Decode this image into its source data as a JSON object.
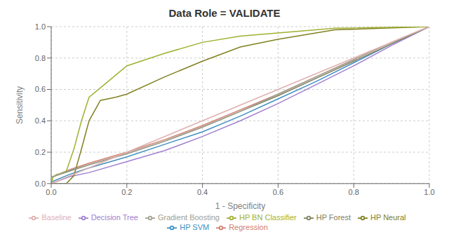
{
  "chart_data": {
    "type": "line",
    "title": "Data Role = VALIDATE",
    "xlabel": "1 - Specificity",
    "ylabel": "Sensitivity",
    "xlim": [
      0.0,
      1.0
    ],
    "ylim": [
      0.0,
      1.0
    ],
    "xticks": [
      {
        "value": 0.0,
        "label": "0.0"
      },
      0.2,
      0.4,
      0.6,
      0.8,
      {
        "value": 1.0,
        "label": "1.0"
      }
    ],
    "yticks": [
      {
        "value": 0.0,
        "label": "0.0"
      },
      0.2,
      0.4,
      0.6,
      0.8,
      {
        "value": 1.0,
        "label": "1.0"
      }
    ],
    "grid": true,
    "legend": "bottom",
    "series": [
      {
        "name": "Decision Tree",
        "color": "#a080d0",
        "x": [
          0.0,
          0.05,
          0.1,
          0.2,
          0.3,
          0.4,
          0.5,
          0.6,
          0.7,
          0.8,
          0.9,
          1.0
        ],
        "values": [
          0.0,
          0.045,
          0.07,
          0.14,
          0.21,
          0.3,
          0.4,
          0.51,
          0.63,
          0.75,
          0.88,
          1.0
        ]
      },
      {
        "name": "Regression",
        "color": "#d08070",
        "x": [
          0.0,
          0.05,
          0.1,
          0.2,
          0.3,
          0.4,
          0.5,
          0.6,
          0.7,
          0.8,
          0.9,
          1.0
        ],
        "values": [
          0.04,
          0.09,
          0.13,
          0.2,
          0.28,
          0.37,
          0.47,
          0.57,
          0.68,
          0.79,
          0.9,
          1.0
        ]
      },
      {
        "name": "HP SVM",
        "color": "#4090c0",
        "x": [
          0.0,
          0.05,
          0.1,
          0.2,
          0.3,
          0.4,
          0.5,
          0.6,
          0.7,
          0.8,
          0.9,
          1.0
        ],
        "values": [
          0.01,
          0.06,
          0.1,
          0.17,
          0.25,
          0.33,
          0.43,
          0.54,
          0.65,
          0.77,
          0.89,
          1.0
        ]
      },
      {
        "name": "HP Neural",
        "color": "#808020",
        "x": [
          0.0,
          0.005,
          0.01,
          0.02,
          0.04,
          0.06,
          0.08,
          0.1,
          0.13,
          0.17,
          0.2,
          0.3,
          0.4,
          0.5,
          0.6,
          0.7,
          0.75,
          1.0
        ],
        "values": [
          0.0,
          0.0,
          0.0,
          0.0,
          0.0,
          0.05,
          0.22,
          0.4,
          0.53,
          0.55,
          0.57,
          0.68,
          0.78,
          0.87,
          0.92,
          0.96,
          0.98,
          1.0
        ]
      },
      {
        "name": "HP Forest",
        "color": "#808060",
        "x": [
          0.0,
          0.05,
          0.1,
          0.2,
          0.3,
          0.4,
          0.5,
          0.6,
          0.7,
          0.8,
          0.9,
          1.0
        ],
        "values": [
          0.04,
          0.08,
          0.12,
          0.19,
          0.27,
          0.36,
          0.46,
          0.56,
          0.67,
          0.78,
          0.89,
          1.0
        ]
      },
      {
        "name": "HP BN Classifier",
        "color": "#a0b030",
        "x": [
          0.0,
          0.005,
          0.01,
          0.015,
          0.02,
          0.03,
          0.04,
          0.06,
          0.08,
          0.1,
          0.15,
          0.2,
          0.3,
          0.4,
          0.5,
          0.6,
          0.7,
          0.75,
          1.0
        ],
        "values": [
          0.0,
          0.04,
          0.05,
          0.06,
          0.06,
          0.07,
          0.08,
          0.22,
          0.4,
          0.55,
          0.65,
          0.75,
          0.83,
          0.9,
          0.94,
          0.96,
          0.98,
          0.99,
          1.0
        ]
      },
      {
        "name": "Gradient Boosting",
        "color": "#a0a090",
        "x": [
          0.0,
          0.05,
          0.1,
          0.2,
          0.3,
          0.4,
          0.5,
          0.6,
          0.7,
          0.8,
          0.9,
          1.0
        ],
        "values": [
          0.04,
          0.085,
          0.12,
          0.19,
          0.27,
          0.36,
          0.46,
          0.57,
          0.68,
          0.79,
          0.9,
          1.0
        ]
      },
      {
        "name": "Baseline",
        "color": "#e0b0b0",
        "x": [
          0.0,
          1.0
        ],
        "values": [
          0.0,
          1.0
        ]
      }
    ]
  }
}
